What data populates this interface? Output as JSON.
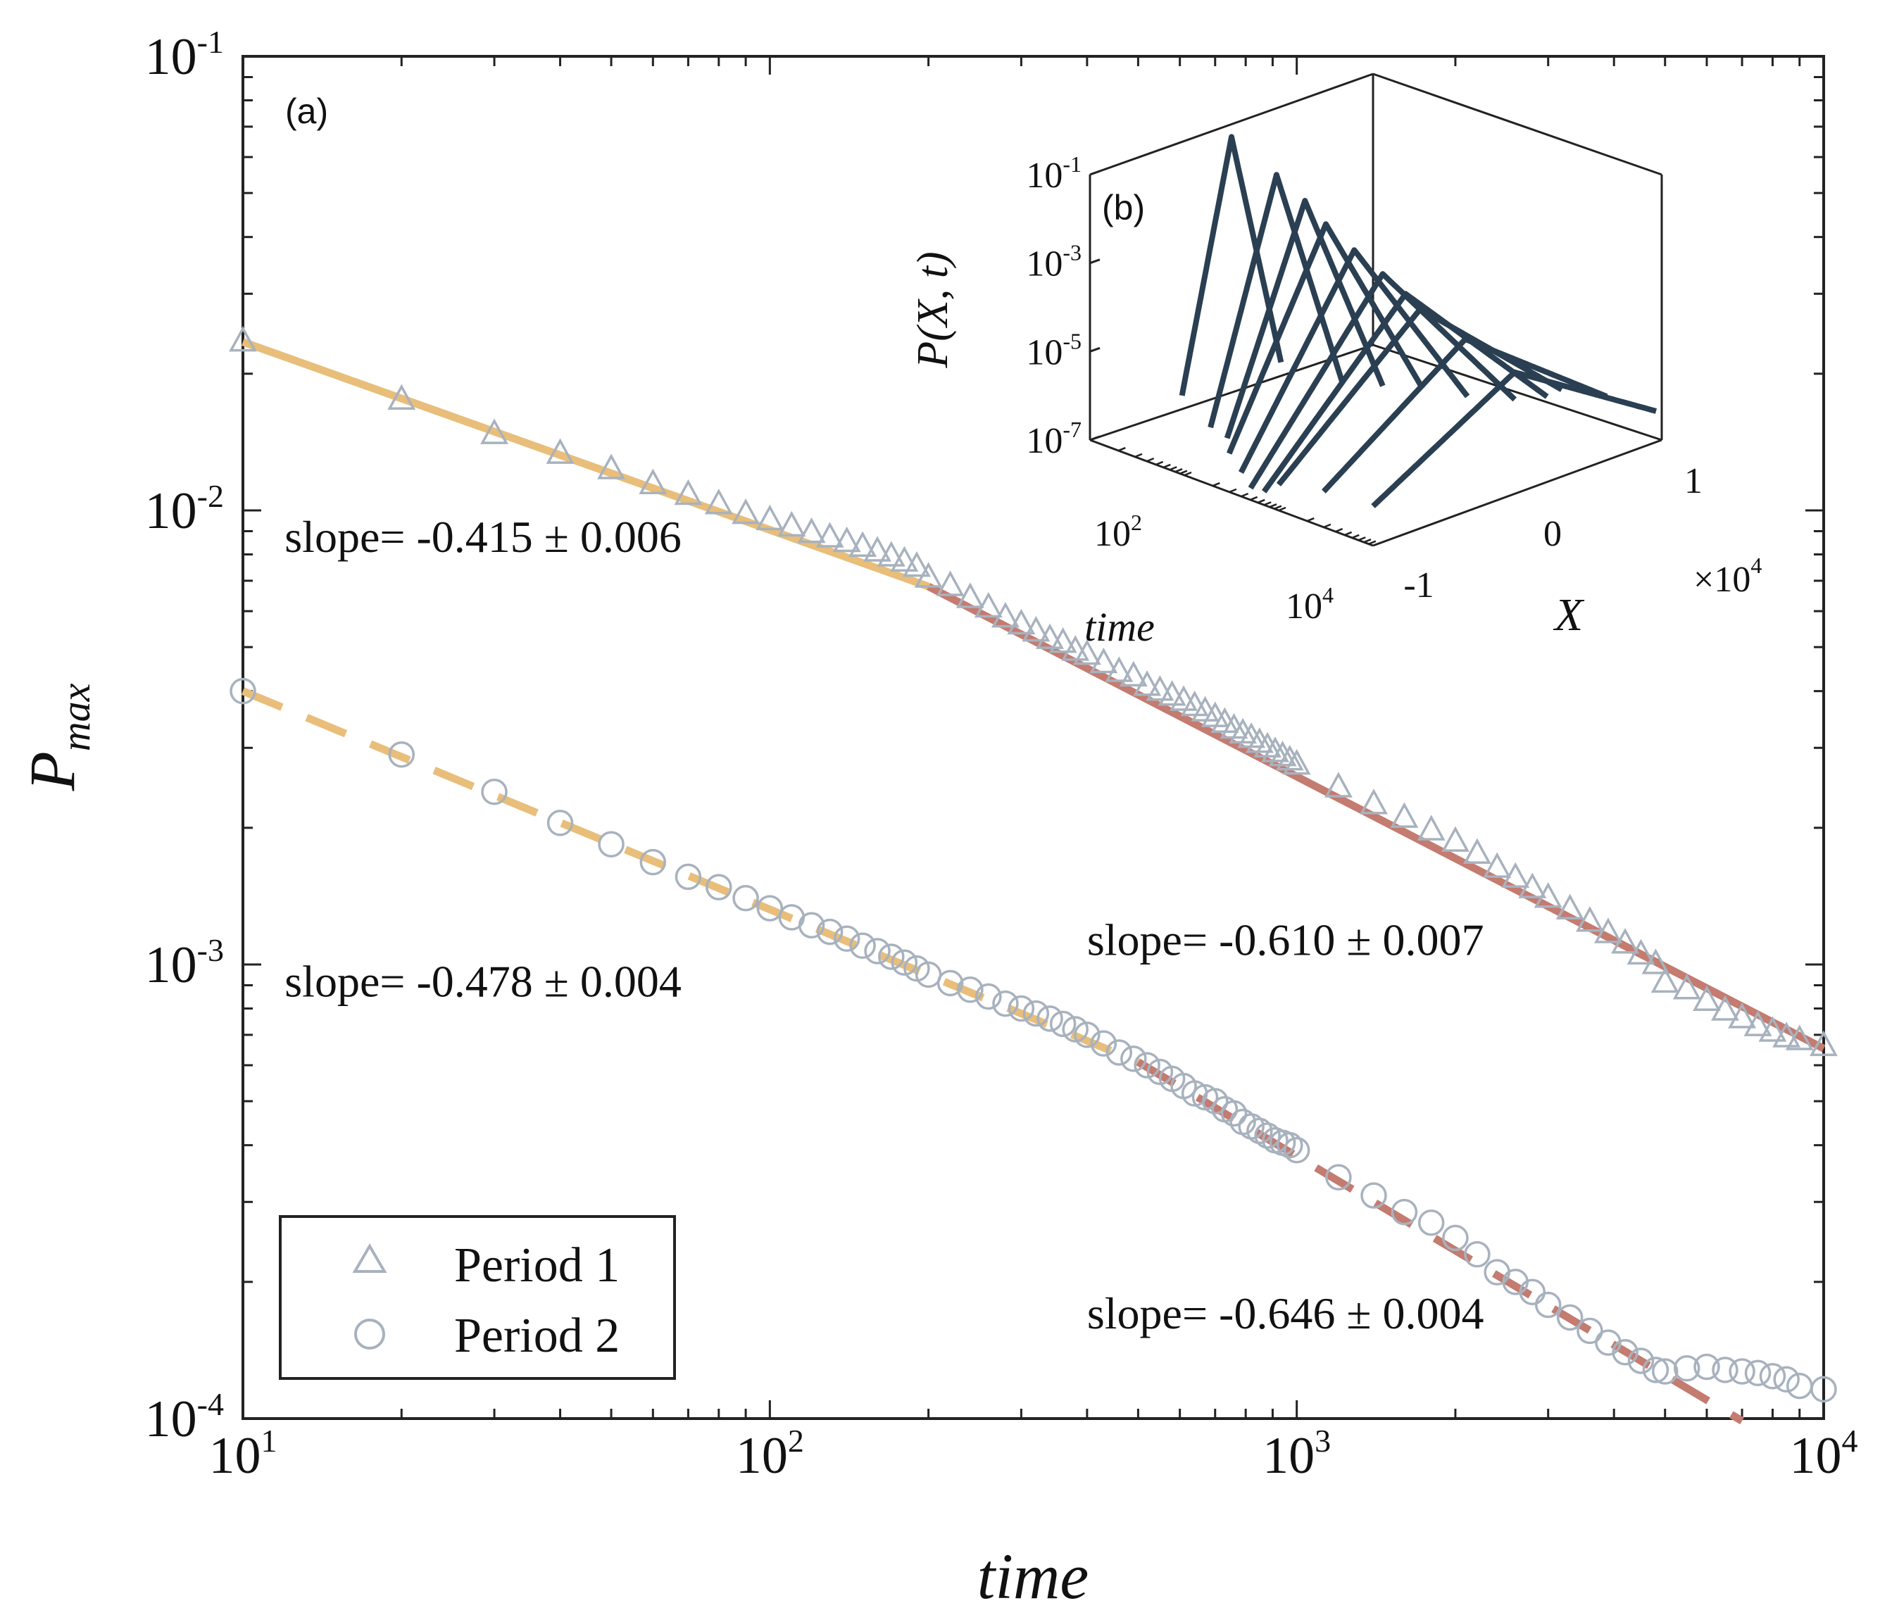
{
  "chart_data": [
    {
      "id": "a",
      "panel_label": "(a)",
      "type": "scatter",
      "xscale": "log",
      "yscale": "log",
      "xlabel": "time",
      "ylabel": "P",
      "ylabel_sub": "max",
      "xlim": [
        10,
        10000
      ],
      "ylim": [
        0.0001,
        0.1
      ],
      "x_ticks": [
        {
          "base": "10",
          "exp": "1"
        },
        {
          "base": "10",
          "exp": "2"
        },
        {
          "base": "10",
          "exp": "3"
        },
        {
          "base": "10",
          "exp": "4"
        }
      ],
      "y_ticks": [
        {
          "base": "10",
          "exp": "-4"
        },
        {
          "base": "10",
          "exp": "-3"
        },
        {
          "base": "10",
          "exp": "-2"
        },
        {
          "base": "10",
          "exp": "-1"
        }
      ],
      "grid": false,
      "legend": {
        "placement": "bottom-left",
        "entries": [
          {
            "label": "Period 1",
            "marker": "triangle"
          },
          {
            "label": "Period 2",
            "marker": "circle"
          }
        ]
      },
      "series": [
        {
          "name": "Period 1",
          "marker": "triangle",
          "color": "#a8b2be",
          "x": [
            10,
            20,
            30,
            40,
            50,
            60,
            70,
            80,
            90,
            100,
            110,
            120,
            130,
            140,
            150,
            160,
            170,
            180,
            190,
            200,
            220,
            240,
            260,
            280,
            300,
            320,
            340,
            360,
            380,
            400,
            430,
            460,
            490,
            520,
            550,
            580,
            610,
            640,
            670,
            700,
            730,
            760,
            790,
            820,
            850,
            880,
            910,
            940,
            970,
            1000,
            1200,
            1400,
            1600,
            1800,
            2000,
            2200,
            2400,
            2600,
            2800,
            3000,
            3300,
            3600,
            3900,
            4200,
            4500,
            4800,
            5000,
            5500,
            6000,
            6500,
            7000,
            7500,
            8000,
            8500,
            9000,
            10000
          ],
          "y": [
            0.0235,
            0.0175,
            0.0147,
            0.0133,
            0.0123,
            0.0114,
            0.0108,
            0.0103,
            0.0098,
            0.0095,
            0.0092,
            0.0089,
            0.0087,
            0.0085,
            0.0083,
            0.0081,
            0.0079,
            0.0077,
            0.0075,
            0.0071,
            0.0068,
            0.0064,
            0.0061,
            0.0058,
            0.0056,
            0.0054,
            0.0052,
            0.0051,
            0.0049,
            0.0048,
            0.0046,
            0.0044,
            0.0043,
            0.0041,
            0.004,
            0.0039,
            0.0038,
            0.0037,
            0.0036,
            0.0035,
            0.0034,
            0.0033,
            0.00322,
            0.00315,
            0.00307,
            0.003,
            0.00293,
            0.00287,
            0.00281,
            0.00275,
            0.00245,
            0.00225,
            0.0021,
            0.00197,
            0.00186,
            0.00175,
            0.00163,
            0.00155,
            0.00147,
            0.0014,
            0.00132,
            0.00124,
            0.00117,
            0.00111,
            0.00105,
            0.001,
            0.00091,
            0.00088,
            0.00083,
            0.00079,
            0.00076,
            0.00073,
            0.00071,
            0.00069,
            0.00068,
            0.00066
          ]
        },
        {
          "name": "Period 2",
          "marker": "circle",
          "color": "#a8b2be",
          "x": [
            10,
            20,
            30,
            40,
            50,
            60,
            70,
            80,
            90,
            100,
            110,
            120,
            130,
            140,
            150,
            160,
            170,
            180,
            190,
            200,
            220,
            240,
            260,
            280,
            300,
            320,
            340,
            360,
            380,
            400,
            430,
            460,
            490,
            520,
            550,
            580,
            610,
            640,
            670,
            700,
            730,
            760,
            790,
            820,
            850,
            880,
            910,
            940,
            970,
            1000,
            1200,
            1400,
            1600,
            1800,
            2000,
            2200,
            2400,
            2600,
            2800,
            3000,
            3300,
            3600,
            3900,
            4200,
            4500,
            4800,
            5000,
            5500,
            6000,
            6500,
            7000,
            7500,
            8000,
            8500,
            9000,
            10000
          ],
          "y": [
            0.004,
            0.0029,
            0.0024,
            0.00205,
            0.00184,
            0.00168,
            0.00156,
            0.00148,
            0.0014,
            0.00133,
            0.00127,
            0.00122,
            0.00118,
            0.00114,
            0.0011,
            0.00107,
            0.00104,
            0.00101,
            0.00098,
            0.00095,
            0.00091,
            0.00088,
            0.00085,
            0.00082,
            0.0008,
            0.00078,
            0.00076,
            0.00074,
            0.00072,
            0.0007,
            0.00067,
            0.00064,
            0.00062,
            0.0006,
            0.00058,
            0.00056,
            0.00054,
            0.00052,
            0.00051,
            0.0005,
            0.00048,
            0.00047,
            0.00045,
            0.00044,
            0.00043,
            0.00042,
            0.00041,
            0.000405,
            0.0004,
            0.00039,
            0.00034,
            0.00031,
            0.000285,
            0.00027,
            0.00025,
            0.00023,
            0.00021,
            0.0002,
            0.00019,
            0.000178,
            0.000167,
            0.000156,
            0.000147,
            0.00014,
            0.000134,
            0.000128,
            0.000127,
            0.000129,
            0.00013,
            0.000128,
            0.000127,
            0.000126,
            0.000124,
            0.000122,
            0.000118,
            0.000116
          ]
        }
      ],
      "fits": [
        {
          "series": "Period 1",
          "style": "solid",
          "color": "#e8be7a",
          "x": [
            10,
            200
          ],
          "y": [
            0.0235,
            0.0068
          ],
          "slope_label": "slope= -0.415 ± 0.006",
          "label_anchor": [
            12,
            0.0081
          ]
        },
        {
          "series": "Period 1",
          "style": "solid",
          "color": "#c47b70",
          "x": [
            200,
            10000
          ],
          "y": [
            0.0068,
            0.000653
          ],
          "slope_label": "slope= -0.610 ± 0.007",
          "label_anchor": [
            400,
            0.00105
          ]
        },
        {
          "series": "Period 2",
          "style": "dashed",
          "color": "#e8be7a",
          "x": [
            10,
            500
          ],
          "y": [
            0.004,
            0.00061
          ],
          "slope_label": "slope= -0.478 ± 0.004",
          "label_anchor": [
            12,
            0.00085
          ]
        },
        {
          "series": "Period 2",
          "style": "dashed",
          "color": "#c47b70",
          "x": [
            500,
            7000
          ],
          "y": [
            0.00061,
            9.88e-05
          ],
          "slope_label": "slope= -0.646 ± 0.004",
          "label_anchor": [
            400,
            0.000158
          ]
        }
      ]
    },
    {
      "id": "b",
      "panel_label": "(b)",
      "type": "line",
      "projection": "3d",
      "xlabel": "X",
      "ylabel": "time",
      "zlabel": "P(X, t)",
      "x_multiplier": {
        "text": "×10",
        "exp": "4"
      },
      "x_ticks": [
        "-1",
        "0",
        "1"
      ],
      "y_ticks": [
        {
          "base": "10",
          "exp": "2"
        },
        {
          "base": "10",
          "exp": "4"
        }
      ],
      "z_ticks": [
        {
          "base": "10",
          "exp": "-7"
        },
        {
          "base": "10",
          "exp": "-5"
        },
        {
          "base": "10",
          "exp": "-3"
        },
        {
          "base": "10",
          "exp": "-1"
        }
      ],
      "color": "#2a3f52",
      "curves": [
        {
          "time": 10,
          "peak": 0.06,
          "width": 0.05
        },
        {
          "time": 30,
          "peak": 0.02,
          "width": 0.07
        },
        {
          "time": 60,
          "peak": 0.009,
          "width": 0.09
        },
        {
          "time": 100,
          "peak": 0.004,
          "width": 0.12
        },
        {
          "time": 200,
          "peak": 0.0018,
          "width": 0.15
        },
        {
          "time": 400,
          "peak": 0.0009,
          "width": 0.19
        },
        {
          "time": 700,
          "peak": 0.0005,
          "width": 0.23
        },
        {
          "time": 1000,
          "peak": 0.0003,
          "width": 0.27
        },
        {
          "time": 3000,
          "peak": 0.00015,
          "width": 0.33
        },
        {
          "time": 10000,
          "peak": 7e-05,
          "width": 0.4
        }
      ]
    }
  ]
}
